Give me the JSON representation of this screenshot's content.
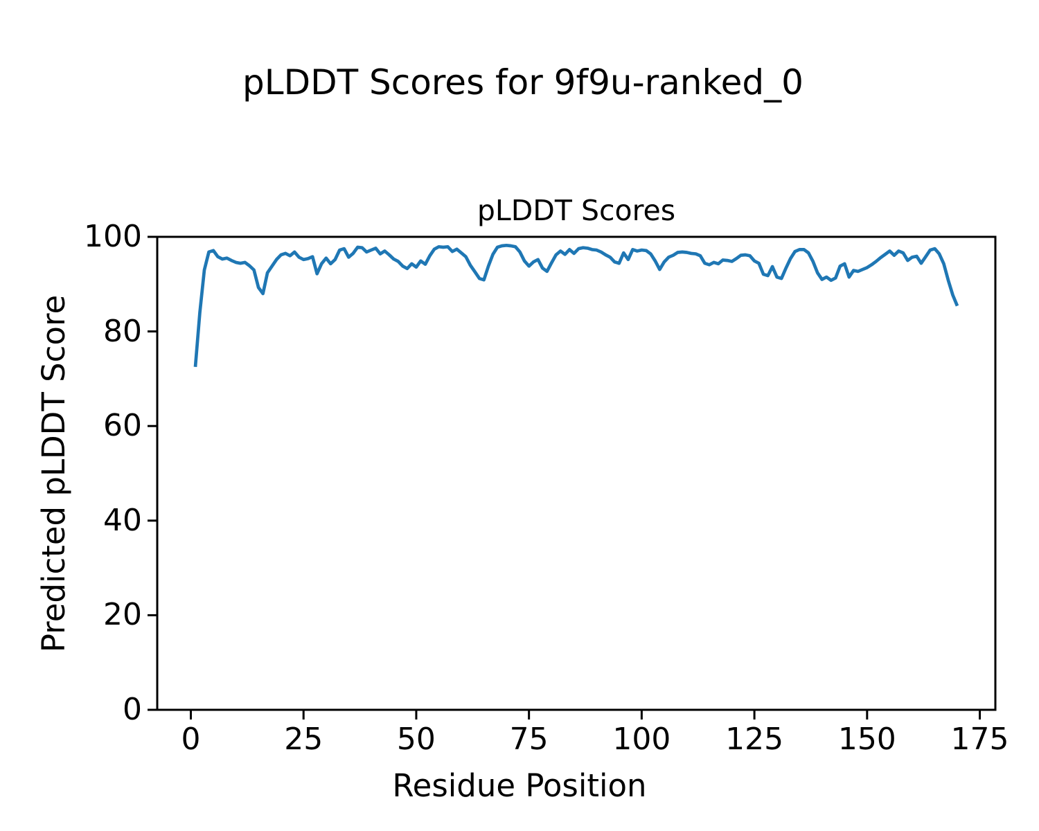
{
  "chart_data": {
    "type": "line",
    "suptitle": "pLDDT Scores for 9f9u-ranked_0",
    "title": "pLDDT Scores",
    "xlabel": "Residue Position",
    "ylabel": "Predicted pLDDT Score",
    "x_start": 1,
    "series": [
      {
        "name": "pLDDT",
        "values": [
          72.5,
          84.0,
          93.0,
          96.8,
          97.1,
          95.8,
          95.3,
          95.5,
          95.0,
          94.6,
          94.4,
          94.6,
          93.9,
          93.0,
          89.3,
          88.0,
          92.4,
          93.8,
          95.2,
          96.2,
          96.5,
          96.0,
          96.8,
          95.7,
          95.2,
          95.4,
          95.8,
          92.2,
          94.3,
          95.5,
          94.3,
          95.2,
          97.2,
          97.5,
          95.7,
          96.5,
          97.8,
          97.7,
          96.8,
          97.2,
          97.6,
          96.4,
          97.0,
          96.2,
          95.3,
          94.8,
          93.8,
          93.3,
          94.3,
          93.6,
          94.9,
          94.2,
          96.0,
          97.4,
          97.9,
          97.8,
          97.9,
          96.9,
          97.4,
          96.6,
          95.8,
          94.0,
          92.6,
          91.2,
          90.9,
          93.8,
          96.3,
          97.8,
          98.1,
          98.2,
          98.1,
          97.9,
          96.8,
          94.9,
          93.8,
          94.7,
          95.2,
          93.4,
          92.7,
          94.5,
          96.2,
          97.0,
          96.3,
          97.3,
          96.5,
          97.5,
          97.7,
          97.6,
          97.3,
          97.2,
          96.8,
          96.2,
          95.7,
          94.7,
          94.4,
          96.6,
          95.2,
          97.3,
          97.0,
          97.2,
          97.1,
          96.4,
          94.9,
          93.1,
          94.7,
          95.7,
          96.1,
          96.7,
          96.8,
          96.7,
          96.5,
          96.4,
          96.0,
          94.4,
          94.1,
          94.6,
          94.3,
          95.1,
          95.0,
          94.8,
          95.4,
          96.1,
          96.2,
          96.0,
          94.9,
          94.4,
          92.1,
          91.8,
          93.7,
          91.5,
          91.2,
          93.4,
          95.4,
          96.9,
          97.3,
          97.3,
          96.6,
          94.8,
          92.4,
          91.0,
          91.5,
          90.8,
          91.3,
          93.8,
          94.3,
          91.5,
          92.9,
          92.7,
          93.1,
          93.5,
          94.1,
          94.8,
          95.6,
          96.3,
          97.0,
          96.1,
          97.0,
          96.6,
          95.0,
          95.7,
          95.9,
          94.4,
          95.8,
          97.2,
          97.5,
          96.4,
          94.3,
          90.8,
          87.7,
          85.4
        ]
      }
    ],
    "xticks": [
      0,
      25,
      50,
      75,
      100,
      125,
      150,
      175
    ],
    "yticks": [
      0,
      20,
      40,
      60,
      80,
      100
    ],
    "xlim": [
      -7.45,
      178.45
    ],
    "ylim": [
      0,
      100
    ],
    "grid": false,
    "legend_position": "none",
    "line_color": "#1f77b4",
    "axis_color": "#000000"
  }
}
